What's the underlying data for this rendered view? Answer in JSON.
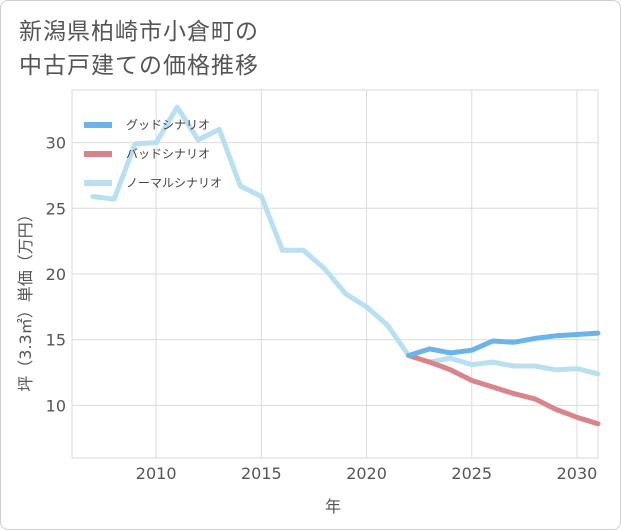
{
  "title_lines": [
    "新潟県柏崎市小倉町の",
    "中古戸建ての価格推移"
  ],
  "chart_data": {
    "type": "line",
    "title": "新潟県柏崎市小倉町の中古戸建ての価格推移",
    "xlabel": "年",
    "ylabel": "坪（3.3㎡）単価（万円）",
    "xlim": [
      2006,
      2031
    ],
    "ylim": [
      6,
      34
    ],
    "x_ticks": [
      2010,
      2015,
      2020,
      2025,
      2030
    ],
    "y_ticks": [
      10,
      15,
      20,
      25,
      30
    ],
    "grid": true,
    "legend_position": "top-left",
    "series": [
      {
        "name": "グッドシナリオ",
        "color": "#6ab4ea",
        "x": [
          2022,
          2023,
          2024,
          2025,
          2026,
          2027,
          2028,
          2029,
          2030,
          2031
        ],
        "y": [
          13.8,
          14.3,
          14.0,
          14.2,
          14.9,
          14.8,
          15.1,
          15.3,
          15.4,
          15.5
        ]
      },
      {
        "name": "バッドシナリオ",
        "color": "#d9848b",
        "x": [
          2022,
          2023,
          2024,
          2025,
          2026,
          2027,
          2028,
          2029,
          2030,
          2031
        ],
        "y": [
          13.8,
          13.3,
          12.7,
          11.9,
          11.4,
          10.9,
          10.5,
          9.7,
          9.1,
          8.6
        ]
      },
      {
        "name": "ノーマルシナリオ",
        "color": "#b9dff0",
        "x": [
          2007,
          2008,
          2009,
          2010,
          2011,
          2012,
          2013,
          2014,
          2015,
          2016,
          2017,
          2018,
          2019,
          2020,
          2021,
          2022,
          2023,
          2024,
          2025,
          2026,
          2027,
          2028,
          2029,
          2030,
          2031
        ],
        "y": [
          25.9,
          25.7,
          29.9,
          30.0,
          32.7,
          30.2,
          31.0,
          26.7,
          25.9,
          21.8,
          21.8,
          20.4,
          18.5,
          17.5,
          16.1,
          13.8,
          13.3,
          13.6,
          13.1,
          13.3,
          13.0,
          13.0,
          12.7,
          12.8,
          12.4
        ]
      }
    ]
  }
}
